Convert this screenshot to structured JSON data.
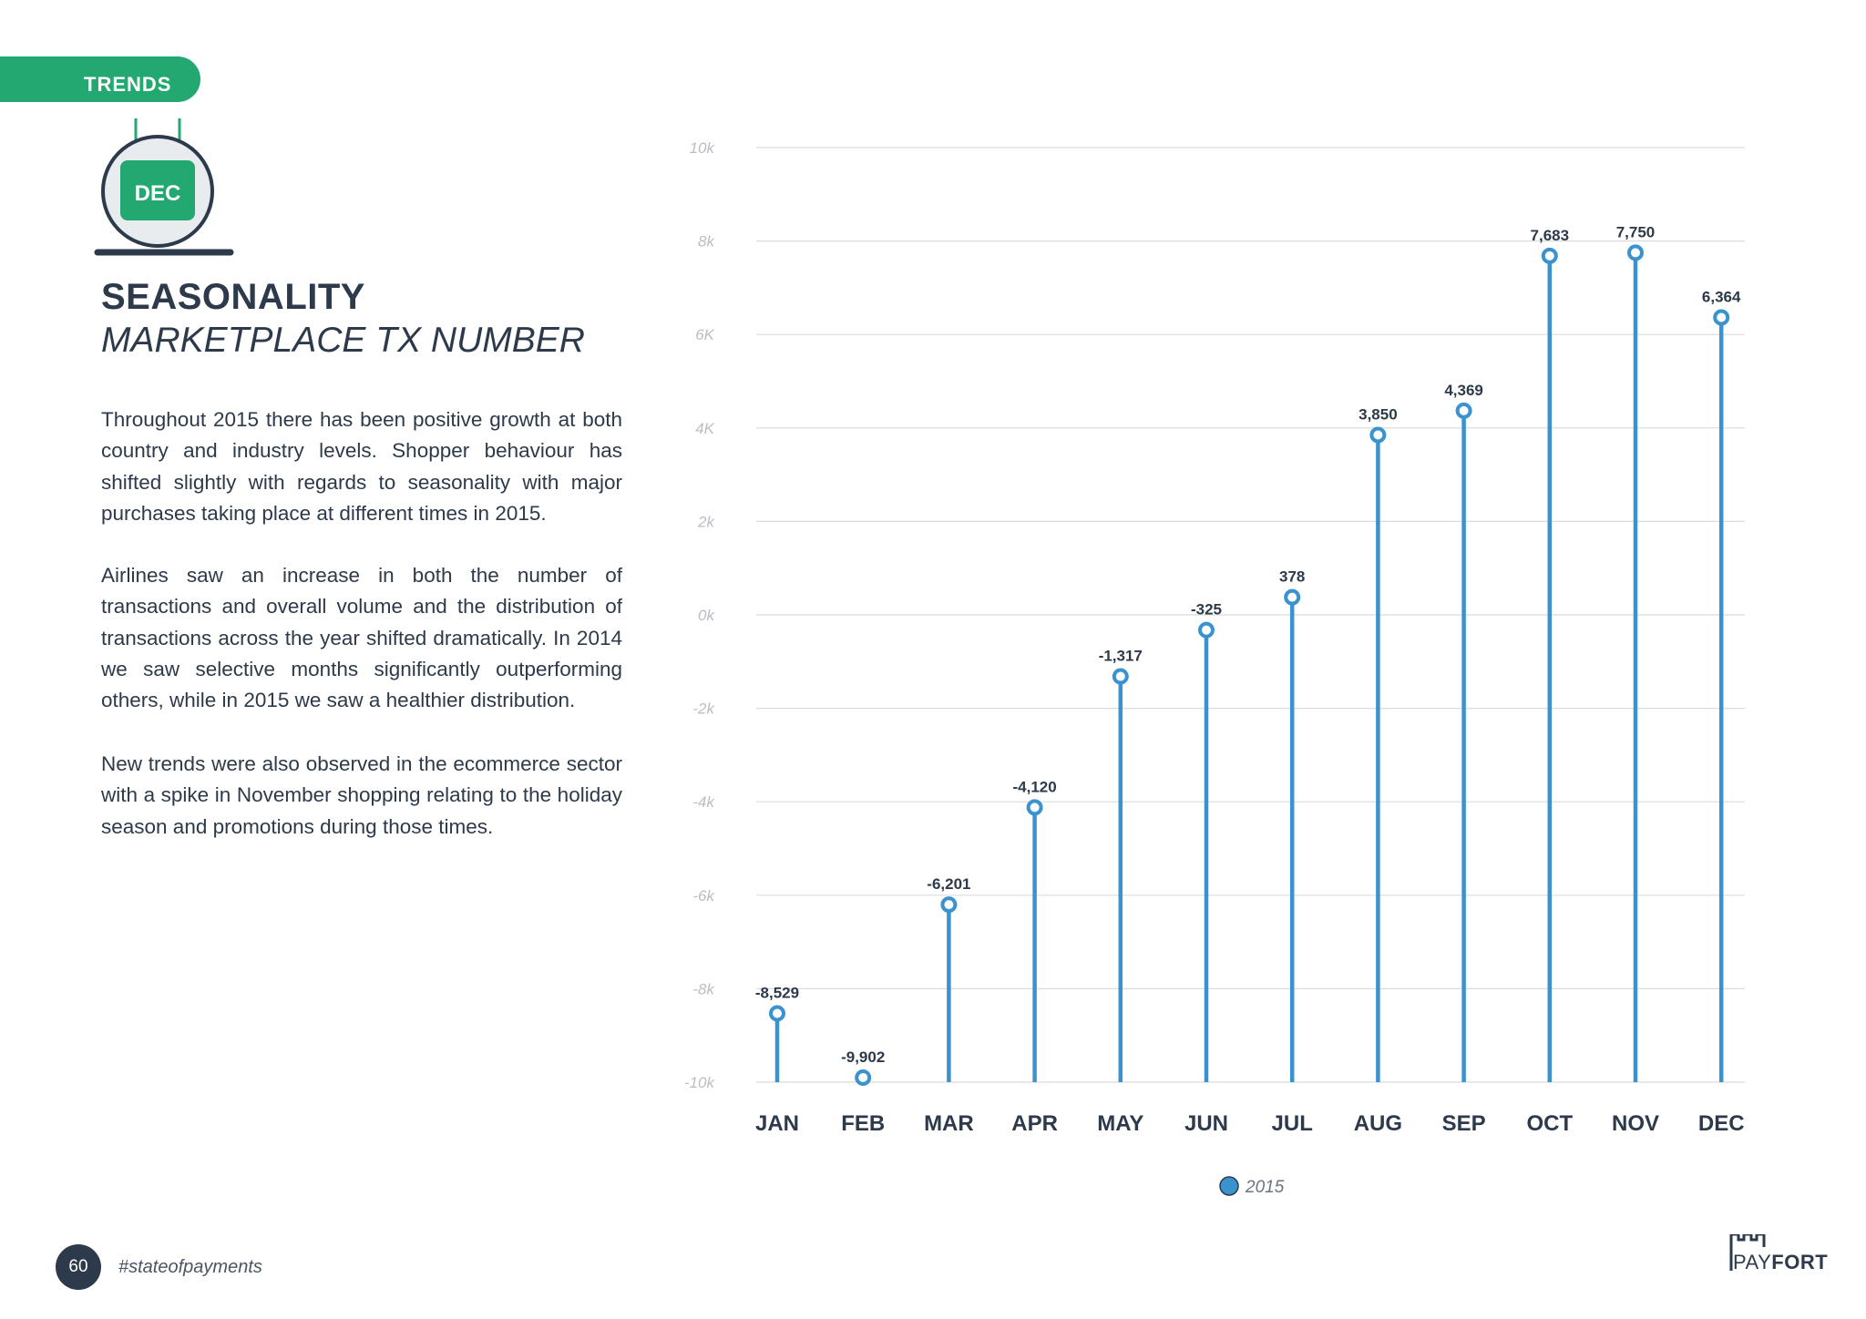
{
  "header": {
    "section_tab": "TRENDS",
    "calendar_month": "DEC"
  },
  "heading": {
    "title": "SEASONALITY",
    "subtitle": "MARKETPLACE TX NUMBER"
  },
  "body": {
    "paragraphs": [
      "Throughout 2015 there has been positive growth at both country and industry levels. Shopper behaviour has shifted slightly with regards to seasonality with major purchases taking place at different times in 2015.",
      "Airlines saw an increase in both the number of transactions and overall volume and the distribution of transactions across the year shifted dramatically. In 2014 we saw selective months significantly outperforming others, while in 2015 we saw a healthier distribution.",
      "New trends were also observed in the ecommerce sector with a spike in November shopping relating to the holiday season and promotions during those times."
    ]
  },
  "footer": {
    "page_number": "60",
    "hashtag": "#stateofpayments",
    "logo_prefix": "PAY",
    "logo_suffix": "FORT"
  },
  "colors": {
    "brand_green": "#22a870",
    "series_blue": "#3a93cf",
    "text_dark": "#2c3a4b",
    "grid": "#dcdcdc"
  },
  "chart_data": {
    "type": "bar",
    "style": "lollipop",
    "categories": [
      "JAN",
      "FEB",
      "MAR",
      "APR",
      "MAY",
      "JUN",
      "JUL",
      "AUG",
      "SEP",
      "OCT",
      "NOV",
      "DEC"
    ],
    "series": [
      {
        "name": "2015",
        "values": [
          -8529,
          -9902,
          -6201,
          -4120,
          -1317,
          -325,
          378,
          3850,
          4369,
          7683,
          7750,
          6364
        ]
      }
    ],
    "data_labels": [
      "-8,529",
      "-9,902",
      "-6,201",
      "-4,120",
      "-1,317",
      "-325",
      "378",
      "3,850",
      "4,369",
      "7,683",
      "7,750",
      "6,364"
    ],
    "yticks": [
      10000,
      8000,
      6000,
      4000,
      2000,
      0,
      -2000,
      -4000,
      -6000,
      -8000,
      -10000
    ],
    "ytick_labels": [
      "10k",
      "8k",
      "6K",
      "4K",
      "2k",
      "0k",
      "-2k",
      "-4k",
      "-6k",
      "-8k",
      "-10k"
    ],
    "ylim": [
      -10000,
      10000
    ],
    "grid": true,
    "legend": "bottom-center",
    "title": "",
    "xlabel": "",
    "ylabel": ""
  }
}
